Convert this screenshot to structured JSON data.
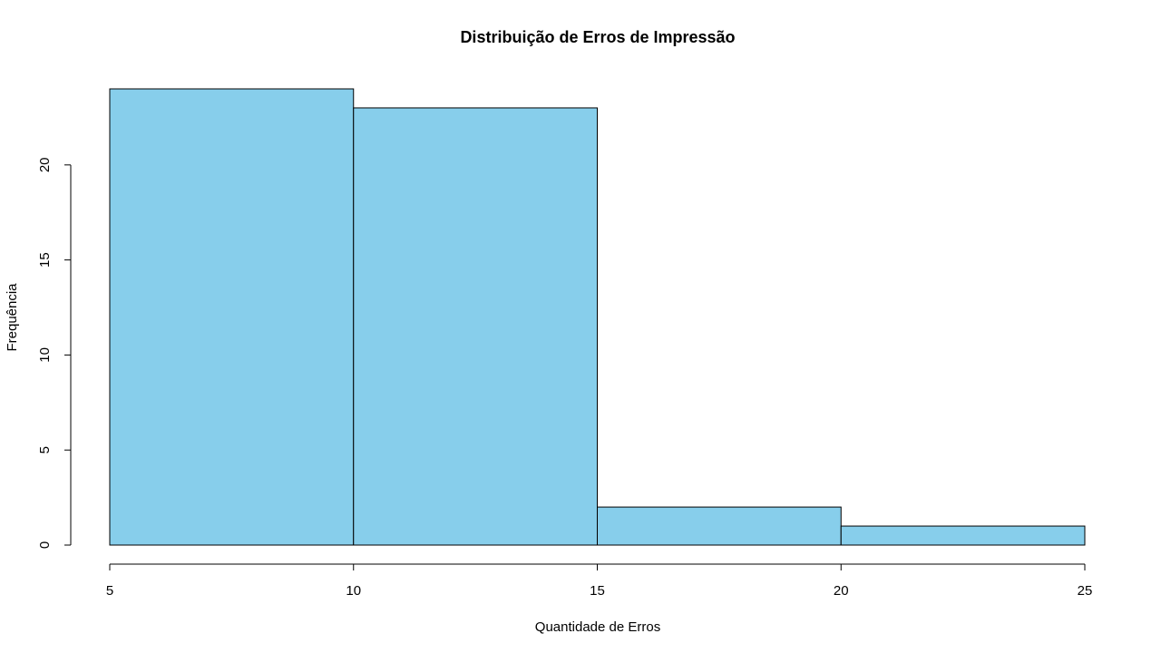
{
  "chart_data": {
    "type": "bar",
    "title": "Distribuição de Erros de Impressão",
    "xlabel": "Quantidade de Erros",
    "ylabel": "Frequência",
    "bins": [
      {
        "start": 5,
        "end": 10,
        "count": 24
      },
      {
        "start": 10,
        "end": 15,
        "count": 23
      },
      {
        "start": 15,
        "end": 20,
        "count": 2
      },
      {
        "start": 20,
        "end": 25,
        "count": 1
      }
    ],
    "xlim": [
      5,
      25
    ],
    "ylim": [
      0,
      24
    ],
    "x_ticks": [
      5,
      10,
      15,
      20,
      25
    ],
    "y_ticks": [
      0,
      5,
      10,
      15,
      20
    ],
    "bar_color": "#87CEEB",
    "grid": false
  }
}
